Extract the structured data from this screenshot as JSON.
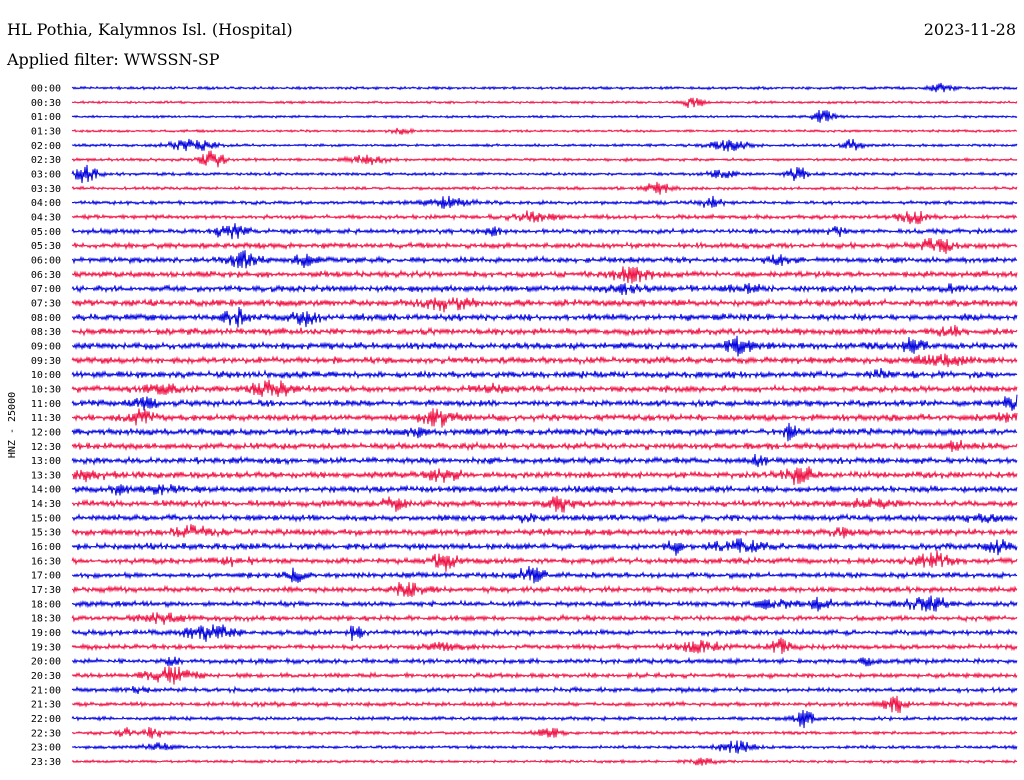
{
  "header": {
    "station": "HL Pothia, Kalymnos Isl. (Hospital)",
    "date": "2023-11-28",
    "filter": "Applied filter: WWSSN-SP"
  },
  "chart_data": {
    "type": "line",
    "title": "HL Pothia, Kalymnos Isl. (Hospital)",
    "ylabel": "HNZ - 25000",
    "colors": [
      "#0000dd",
      "#ee1144"
    ],
    "rows": [
      {
        "label": "00:00",
        "color": "#0000dd",
        "amp": 0.25
      },
      {
        "label": "00:30",
        "color": "#ee1144",
        "amp": 0.2
      },
      {
        "label": "01:00",
        "color": "#0000dd",
        "amp": 0.2
      },
      {
        "label": "01:30",
        "color": "#ee1144",
        "amp": 0.2
      },
      {
        "label": "02:00",
        "color": "#0000dd",
        "amp": 0.25
      },
      {
        "label": "02:30",
        "color": "#ee1144",
        "amp": 0.3
      },
      {
        "label": "03:00",
        "color": "#0000dd",
        "amp": 0.3
      },
      {
        "label": "03:30",
        "color": "#ee1144",
        "amp": 0.3
      },
      {
        "label": "04:00",
        "color": "#0000dd",
        "amp": 0.4
      },
      {
        "label": "04:30",
        "color": "#ee1144",
        "amp": 0.5
      },
      {
        "label": "05:00",
        "color": "#0000dd",
        "amp": 0.6
      },
      {
        "label": "05:30",
        "color": "#ee1144",
        "amp": 0.7
      },
      {
        "label": "06:00",
        "color": "#0000dd",
        "amp": 0.75
      },
      {
        "label": "06:30",
        "color": "#ee1144",
        "amp": 0.8
      },
      {
        "label": "07:00",
        "color": "#0000dd",
        "amp": 0.85
      },
      {
        "label": "07:30",
        "color": "#ee1144",
        "amp": 0.9
      },
      {
        "label": "08:00",
        "color": "#0000dd",
        "amp": 0.9
      },
      {
        "label": "08:30",
        "color": "#ee1144",
        "amp": 0.9
      },
      {
        "label": "09:00",
        "color": "#0000dd",
        "amp": 0.9
      },
      {
        "label": "09:30",
        "color": "#ee1144",
        "amp": 0.9
      },
      {
        "label": "10:00",
        "color": "#0000dd",
        "amp": 0.9
      },
      {
        "label": "10:30",
        "color": "#ee1144",
        "amp": 0.85
      },
      {
        "label": "11:00",
        "color": "#0000dd",
        "amp": 0.85
      },
      {
        "label": "11:30",
        "color": "#ee1144",
        "amp": 0.85
      },
      {
        "label": "12:00",
        "color": "#0000dd",
        "amp": 0.9
      },
      {
        "label": "12:30",
        "color": "#ee1144",
        "amp": 0.85
      },
      {
        "label": "13:00",
        "color": "#0000dd",
        "amp": 0.85
      },
      {
        "label": "13:30",
        "color": "#ee1144",
        "amp": 0.85
      },
      {
        "label": "14:00",
        "color": "#0000dd",
        "amp": 0.85
      },
      {
        "label": "14:30",
        "color": "#ee1144",
        "amp": 0.85
      },
      {
        "label": "15:00",
        "color": "#0000dd",
        "amp": 0.85
      },
      {
        "label": "15:30",
        "color": "#ee1144",
        "amp": 0.85
      },
      {
        "label": "16:00",
        "color": "#0000dd",
        "amp": 0.85
      },
      {
        "label": "16:30",
        "color": "#ee1144",
        "amp": 0.75
      },
      {
        "label": "17:00",
        "color": "#0000dd",
        "amp": 0.7
      },
      {
        "label": "17:30",
        "color": "#ee1144",
        "amp": 0.7
      },
      {
        "label": "18:00",
        "color": "#0000dd",
        "amp": 0.65
      },
      {
        "label": "18:30",
        "color": "#ee1144",
        "amp": 0.65
      },
      {
        "label": "19:00",
        "color": "#0000dd",
        "amp": 0.65
      },
      {
        "label": "19:30",
        "color": "#ee1144",
        "amp": 0.6
      },
      {
        "label": "20:00",
        "color": "#0000dd",
        "amp": 0.6
      },
      {
        "label": "20:30",
        "color": "#ee1144",
        "amp": 0.55
      },
      {
        "label": "21:00",
        "color": "#0000dd",
        "amp": 0.55
      },
      {
        "label": "21:30",
        "color": "#ee1144",
        "amp": 0.5
      },
      {
        "label": "22:00",
        "color": "#0000dd",
        "amp": 0.4
      },
      {
        "label": "22:30",
        "color": "#ee1144",
        "amp": 0.35
      },
      {
        "label": "23:00",
        "color": "#0000dd",
        "amp": 0.3
      },
      {
        "label": "23:30",
        "color": "#ee1144",
        "amp": 0.25
      }
    ]
  }
}
